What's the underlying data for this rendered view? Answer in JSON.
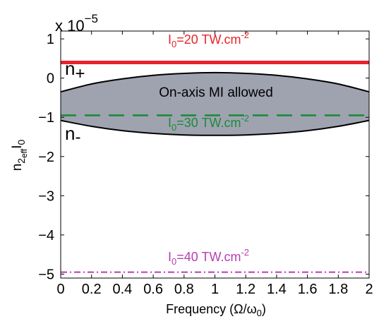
{
  "chart_data": {
    "type": "line",
    "xlabel": "Frequency (Ω/ω",
    "xlabel_sub": "0",
    "xlabel_tail": ")",
    "ylabel_parts": {
      "base": "n",
      "sub1": "2",
      "sub2": "eff",
      "tail": "I",
      "sub3": "0"
    },
    "multiplier": {
      "base": "x 10",
      "exp": "−5"
    },
    "xlim": [
      0,
      2
    ],
    "ylim": [
      -5.1,
      1.2
    ],
    "x_ticks": [
      0,
      0.2,
      0.4,
      0.6,
      0.8,
      1,
      1.2,
      1.4,
      1.6,
      1.8,
      2
    ],
    "x_tick_labels": [
      "0",
      "0.2",
      "0.4",
      "0.6",
      "0.8",
      "1",
      "1.2",
      "1.4",
      "1.6",
      "1.8",
      "2"
    ],
    "y_ticks": [
      1,
      0,
      -1,
      -2,
      -3,
      -4,
      -5
    ],
    "y_tick_labels": [
      "1",
      "0",
      "−1",
      "−2",
      "−3",
      "−4",
      "−5"
    ],
    "grid": false,
    "series": [
      {
        "name": "I0=20 TW.cm-2",
        "style": "solid",
        "color": "#e8232a",
        "x": [
          0,
          2
        ],
        "y": [
          0.4,
          0.4
        ]
      },
      {
        "name": "I0=30 TW.cm-2",
        "style": "dashed",
        "color": "#1e8a3a",
        "x": [
          0,
          2
        ],
        "y": [
          -0.95,
          -0.95
        ]
      },
      {
        "name": "I0=40 TW.cm-2",
        "style": "dashdot",
        "color": "#b93cb4",
        "x": [
          0,
          2
        ],
        "y": [
          -4.95,
          -4.95
        ]
      },
      {
        "name": "n+",
        "style": "solid",
        "color": "#000000",
        "x": [
          0,
          0.2,
          0.4,
          0.6,
          0.8,
          1.0,
          1.2,
          1.4,
          1.6,
          1.8,
          2.0
        ],
        "y": [
          -0.35,
          -0.15,
          -0.02,
          0.07,
          0.12,
          0.14,
          0.12,
          0.07,
          -0.02,
          -0.15,
          -0.35
        ]
      },
      {
        "name": "n-",
        "style": "solid",
        "color": "#000000",
        "x": [
          0,
          0.2,
          0.4,
          0.6,
          0.8,
          1.0,
          1.2,
          1.4,
          1.6,
          1.8,
          2.0
        ],
        "y": [
          -1.08,
          -1.23,
          -1.34,
          -1.41,
          -1.45,
          -1.46,
          -1.45,
          -1.41,
          -1.34,
          -1.23,
          -1.08
        ]
      }
    ],
    "fill_region": {
      "between": [
        "n+",
        "n-"
      ],
      "color": "#9fa3b0",
      "label": "On-axis MI allowed"
    }
  },
  "annotations": {
    "i20": {
      "base": "I",
      "sub": "0",
      "text": "=20 TW.cm",
      "sup": "-2"
    },
    "i30": {
      "base": "I",
      "sub": "0",
      "text": "=30 TW.cm",
      "sup": "-2"
    },
    "i40": {
      "base": "I",
      "sub": "0",
      "text": "=40 TW.cm",
      "sup": "-2"
    },
    "n_plus": {
      "base": "n",
      "sub": "+"
    },
    "n_minus": {
      "base": "n",
      "sub": "-"
    },
    "mi_label": "On-axis MI allowed"
  }
}
